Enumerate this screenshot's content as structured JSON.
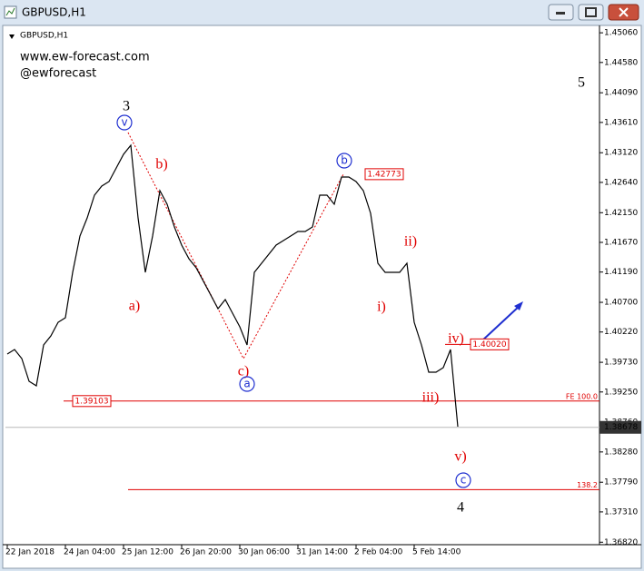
{
  "window_title": "GBPUSD,H1",
  "chart_data": {
    "type": "line",
    "symbol_label": "GBPUSD,H1",
    "watermark": [
      "www.ew-forecast.com",
      "@ewforecast"
    ],
    "categories": [
      "22 Jan 2018",
      null,
      null,
      null,
      null,
      null,
      null,
      null,
      "24 Jan 04:00",
      null,
      null,
      null,
      null,
      null,
      null,
      null,
      "25 Jan 12:00",
      null,
      null,
      null,
      null,
      null,
      null,
      null,
      "26 Jan 20:00",
      null,
      null,
      null,
      null,
      null,
      null,
      null,
      "30 Jan 06:00",
      null,
      null,
      null,
      null,
      null,
      null,
      null,
      "31 Jan 14:00",
      null,
      null,
      null,
      null,
      null,
      null,
      null,
      "2 Feb 04:00",
      null,
      null,
      null,
      null,
      null,
      null,
      null,
      "5 Feb 14:00",
      null,
      null,
      null,
      null,
      null,
      null
    ],
    "values": [
      1.39864,
      1.39937,
      1.3979,
      1.39423,
      1.3935,
      1.4001,
      1.40157,
      1.40378,
      1.40451,
      1.41185,
      1.41773,
      1.42066,
      1.42433,
      1.4258,
      1.42654,
      1.42874,
      1.43094,
      1.43241,
      1.42066,
      1.41185,
      1.41773,
      1.42507,
      1.42287,
      1.4192,
      1.41626,
      1.41406,
      1.41259,
      1.41038,
      1.40818,
      1.40598,
      1.40745,
      1.40524,
      1.40304,
      1.4001,
      1.41185,
      1.41332,
      1.41479,
      1.41626,
      1.41699,
      1.41773,
      1.41846,
      1.41846,
      1.4192,
      1.42433,
      1.42433,
      1.42287,
      1.42727,
      1.42727,
      1.42654,
      1.42507,
      1.4214,
      1.41332,
      1.41185,
      1.41185,
      1.41185,
      1.41332,
      1.40378,
      1.4001,
      1.3957,
      1.3957,
      1.39643,
      1.39937,
      1.38689
    ],
    "color": "#000000",
    "ylim": [
      1.3678,
      1.4515
    ],
    "yticks": [
      {
        "value": 1.4506,
        "label": "1.45060"
      },
      {
        "value": 1.4458,
        "label": "1.44580"
      },
      {
        "value": 1.4409,
        "label": "1.44090"
      },
      {
        "value": 1.4361,
        "label": "1.43610"
      },
      {
        "value": 1.4312,
        "label": "1.43120"
      },
      {
        "value": 1.4264,
        "label": "1.42640"
      },
      {
        "value": 1.4215,
        "label": "1.42150"
      },
      {
        "value": 1.4167,
        "label": "1.41670"
      },
      {
        "value": 1.4119,
        "label": "1.41190"
      },
      {
        "value": 1.407,
        "label": "1.40700"
      },
      {
        "value": 1.4022,
        "label": "1.40220"
      },
      {
        "value": 1.3973,
        "label": "1.39730"
      },
      {
        "value": 1.3925,
        "label": "1.39250"
      },
      {
        "value": 1.3876,
        "label": "1.38760"
      },
      {
        "value": 1.3828,
        "label": "1.38280"
      },
      {
        "value": 1.3779,
        "label": "1.37790"
      },
      {
        "value": 1.3731,
        "label": "1.37310"
      },
      {
        "value": 1.3682,
        "label": "1.36820"
      }
    ],
    "current_price": 1.38678,
    "price_labels": [
      1.42773,
      {
        "value": 1.4002,
        "label": "1.40020"
      },
      1.39103
    ],
    "levels": [
      {
        "value": 1.39103,
        "label": "FE 100.0"
      },
      {
        "value": 1.3767,
        "label": "138.2"
      }
    ],
    "wave_labels": [
      {
        "text": "3",
        "color": "#000000"
      },
      {
        "text": "5",
        "color": "#000000"
      },
      {
        "text": "4",
        "color": "#000000"
      },
      {
        "text": "b)",
        "color": "#e00000"
      },
      {
        "text": "a)",
        "color": "#e00000"
      },
      {
        "text": "c)",
        "color": "#e00000"
      },
      {
        "text": "i)",
        "color": "#e00000"
      },
      {
        "text": "ii)",
        "color": "#e00000"
      },
      {
        "text": "iii)",
        "color": "#e00000"
      },
      {
        "text": "iv)",
        "color": "#e00000"
      },
      {
        "text": "v)",
        "color": "#e00000"
      }
    ],
    "circled_labels": [
      {
        "text": "v",
        "color": "#1f2fd0"
      },
      {
        "text": "a",
        "color": "#1f2fd0"
      },
      {
        "text": "b",
        "color": "#1f2fd0"
      },
      {
        "text": "c",
        "color": "#1f2fd0"
      }
    ]
  }
}
